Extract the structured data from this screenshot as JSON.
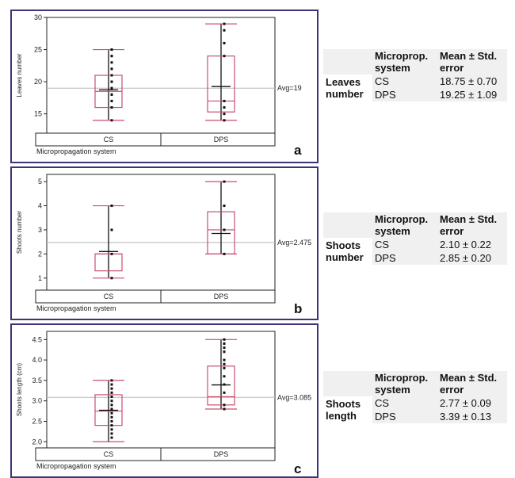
{
  "chart_data": [
    {
      "type": "box",
      "panel": "a",
      "ylabel": "Leaves number",
      "xlabel": "Micropropagation system",
      "categories": [
        "CS",
        "DPS"
      ],
      "ylim": [
        12,
        30
      ],
      "yticks": [
        15,
        20,
        25,
        30
      ],
      "avg": 19,
      "avg_label": "Avg=19",
      "boxes": [
        {
          "min": 14,
          "q1": 16,
          "median": 18.5,
          "q3": 21,
          "max": 25,
          "mean": 18.75
        },
        {
          "min": 14,
          "q1": 15.3,
          "median": 17,
          "q3": 24,
          "max": 29,
          "mean": 19.25
        }
      ],
      "points": [
        [
          14,
          16,
          16,
          17,
          17,
          18,
          18,
          19,
          19,
          20,
          20,
          21,
          21,
          22,
          22,
          23,
          24,
          24,
          25,
          25
        ],
        [
          14,
          15,
          16,
          17,
          24,
          26,
          28,
          29
        ]
      ],
      "letter": "a"
    },
    {
      "type": "box",
      "panel": "b",
      "ylabel": "Shoots number",
      "xlabel": "Micropropagation system",
      "categories": [
        "CS",
        "DPS"
      ],
      "ylim": [
        0.5,
        5.3
      ],
      "yticks": [
        1,
        2,
        3,
        4,
        5
      ],
      "avg": 2.475,
      "avg_label": "Avg=2.475",
      "boxes": [
        {
          "min": 1,
          "q1": 1.3,
          "median": 2,
          "q3": 2,
          "max": 4,
          "mean": 2.1
        },
        {
          "min": 2,
          "q1": 2,
          "median": 3,
          "q3": 3.75,
          "max": 5,
          "mean": 2.85
        }
      ],
      "points": [
        [
          1,
          2,
          3,
          4
        ],
        [
          2,
          3,
          4,
          5
        ]
      ],
      "letter": "b"
    },
    {
      "type": "box",
      "panel": "c",
      "ylabel": "Shoots length (cm)",
      "xlabel": "Micropropagation system",
      "categories": [
        "CS",
        "DPS"
      ],
      "ylim": [
        1.85,
        4.7
      ],
      "yticks": [
        2.0,
        2.5,
        3.0,
        3.5,
        4.0,
        4.5
      ],
      "avg": 3.085,
      "avg_label": "Avg=3.085",
      "boxes": [
        {
          "min": 2.0,
          "q1": 2.4,
          "median": 2.75,
          "q3": 3.15,
          "max": 3.5,
          "mean": 2.77
        },
        {
          "min": 2.8,
          "q1": 2.9,
          "median": 3.1,
          "q3": 3.85,
          "max": 4.5,
          "mean": 3.39
        }
      ],
      "points": [
        [
          2.1,
          2.2,
          2.3,
          2.4,
          2.5,
          2.6,
          2.7,
          2.8,
          2.9,
          3.0,
          3.1,
          3.2,
          3.3,
          3.4,
          3.5
        ],
        [
          2.8,
          2.9,
          3.2,
          3.4,
          3.6,
          3.8,
          3.9,
          4.0,
          4.2,
          4.3,
          4.4,
          4.5
        ]
      ],
      "letter": "c"
    }
  ],
  "tables": [
    {
      "header": {
        "col1": "Microprop. system",
        "col2": "Mean ± Std. error"
      },
      "rowlabel": "Leaves number",
      "rows": [
        {
          "system": "CS",
          "value": "18.75 ± 0.70"
        },
        {
          "system": "DPS",
          "value": "19.25 ± 1.09"
        }
      ]
    },
    {
      "header": {
        "col1": "Microprop. system",
        "col2": "Mean ± Std. error"
      },
      "rowlabel": "Shoots number",
      "rows": [
        {
          "system": "CS",
          "value": "2.10 ± 0.22"
        },
        {
          "system": "DPS",
          "value": "2.85 ± 0.20"
        }
      ]
    },
    {
      "header": {
        "col1": "Microprop. system",
        "col2": "Mean ± Std. error"
      },
      "rowlabel": "Shoots length",
      "rows": [
        {
          "system": "CS",
          "value": "2.77 ± 0.09"
        },
        {
          "system": "DPS",
          "value": "3.39 ± 0.13"
        }
      ]
    }
  ]
}
